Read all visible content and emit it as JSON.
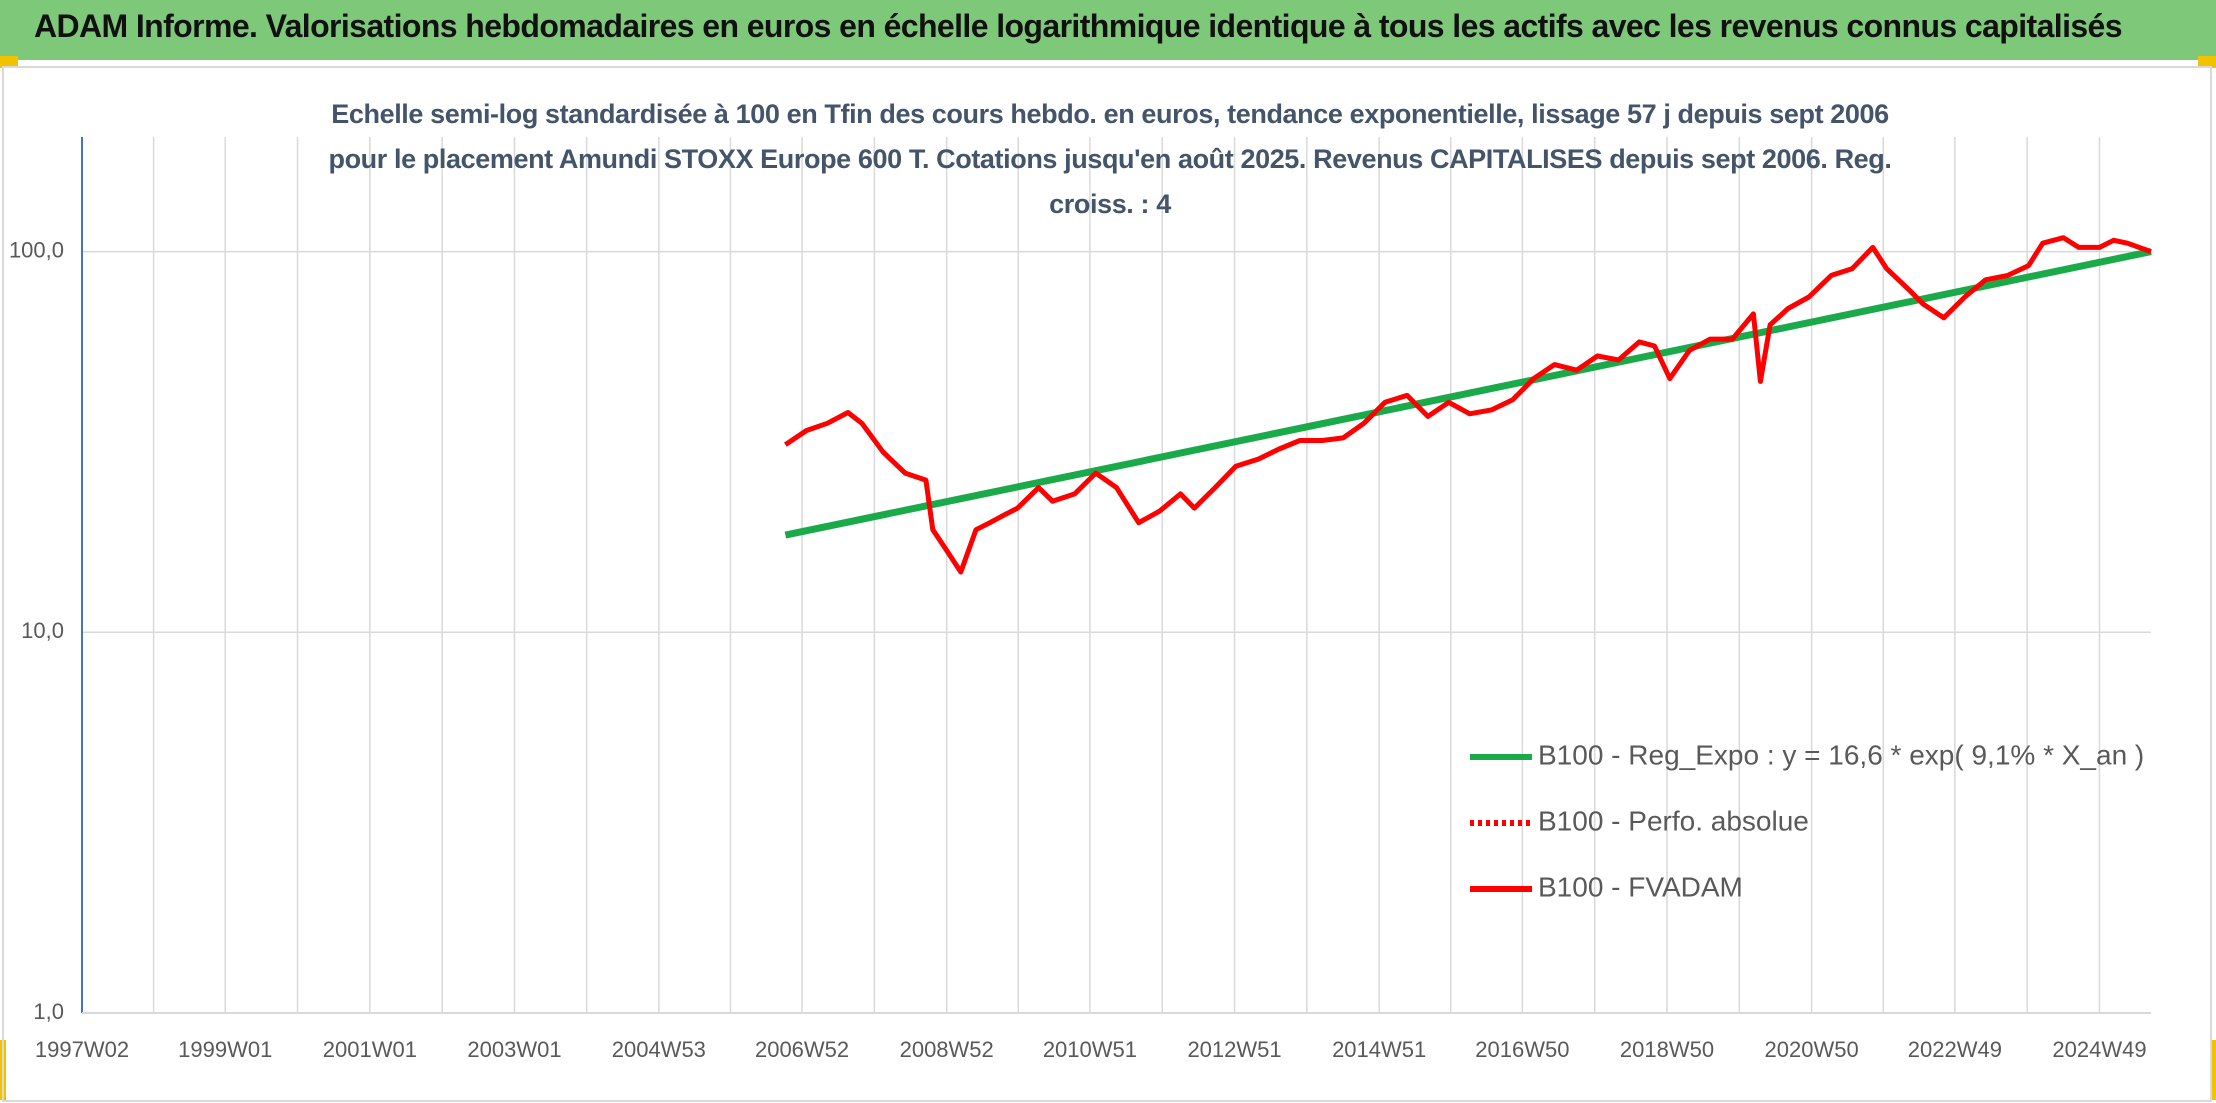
{
  "chart_data": {
    "type": "line",
    "title": "ADAM Informe. Valorisations hebdomadaires en euros en échelle logarithmique identique à tous les actifs avec les revenus connus capitalisés",
    "subtitle": "Echelle semi-log standardisée à 100 en Tfin des cours hebdo. en euros, tendance exponentielle, lissage 57 j depuis sept 2006 pour le placement Amundi STOXX Europe 600 T. Cotations jusqu'en août 2025. Revenus CAPITALISES depuis sept 2006. Reg. croiss. : 4",
    "log_scale": true,
    "grid": true,
    "legend": "right",
    "xlim": [
      "1997W02",
      "2025W34"
    ],
    "xticks": [
      "1997W02",
      "1999W01",
      "2001W01",
      "2003W01",
      "2004W53",
      "2006W52",
      "2008W52",
      "2010W51",
      "2012W51",
      "2014W51",
      "2016W50",
      "2018W50",
      "2020W50",
      "2022W49",
      "2024W49"
    ],
    "ylim": [
      1,
      200
    ],
    "yticks": [
      {
        "value": 1,
        "label": "1,0"
      },
      {
        "value": 10,
        "label": "10,0"
      },
      {
        "value": 100,
        "label": "100,0"
      }
    ],
    "series": [
      {
        "name": "B100 - Reg_Expo : y = 16,6 * exp( 9,1% *  X_an )",
        "color": "#1aaa4a",
        "style": "solid",
        "x": [
          "2006W40",
          "2025W34"
        ],
        "values": [
          18,
          100
        ]
      },
      {
        "name": "B100 - Perfo. absolue",
        "color": "#ff0000",
        "style": "dotted",
        "x": [],
        "values": []
      },
      {
        "name": "B100 - FVADAM",
        "color": "#ff0000",
        "style": "solid",
        "x": [
          "2006W40",
          "2007W03",
          "2007W18",
          "2007W33",
          "2007W43",
          "2008W06",
          "2008W22",
          "2008W37",
          "2008W42",
          "2008W52",
          "2009W10",
          "2009W21",
          "2009W31",
          "2009W41",
          "2009W51",
          "2010W14",
          "2010W24",
          "2010W40",
          "2011W03",
          "2011W18",
          "2011W34",
          "2011W49",
          "2012W12",
          "2012W22",
          "2012W37",
          "2012W52",
          "2013W16",
          "2013W31",
          "2013W46",
          "2014W10",
          "2014W25",
          "2014W40",
          "2015W03",
          "2015W19",
          "2015W34",
          "2015W49",
          "2016W12",
          "2016W28",
          "2016W43",
          "2017W06",
          "2017W21",
          "2017W37",
          "2017W52",
          "2018W15",
          "2018W30",
          "2018W41",
          "2018W52",
          "2019W14",
          "2019W29",
          "2019W45",
          "2020W08",
          "2020W13",
          "2020W20",
          "2020W33",
          "2020W48",
          "2021W12",
          "2021W27",
          "2021W42",
          "2021W52",
          "2022W16",
          "2022W26",
          "2022W41",
          "2023W04",
          "2023W19",
          "2023W35",
          "2023W50",
          "2024W08",
          "2024W23",
          "2024W34",
          "2024W49",
          "2025W07",
          "2025W17",
          "2025W34"
        ],
        "values": [
          31.1,
          33.9,
          35.4,
          37.8,
          35.4,
          29.8,
          26.2,
          25.1,
          18.6,
          16.4,
          14.4,
          18.6,
          19.4,
          20.3,
          21.2,
          24.0,
          22.1,
          23.1,
          26.2,
          24.0,
          19.4,
          20.8,
          23.1,
          21.2,
          24.0,
          27.3,
          28.5,
          30.3,
          31.9,
          31.9,
          32.4,
          35.4,
          40.2,
          41.9,
          36.9,
          40.2,
          37.5,
          38.4,
          40.8,
          46.4,
          50.5,
          48.8,
          53.2,
          51.9,
          57.9,
          56.5,
          46.4,
          55.0,
          58.9,
          58.9,
          68.6,
          45.6,
          64.2,
          70.9,
          76.0,
          86.6,
          90.2,
          102.6,
          90.2,
          79.3,
          72.9,
          67.0,
          76.0,
          84.3,
          86.6,
          91.9,
          105.2,
          108.8,
          102.6,
          102.6,
          107.1,
          105.2,
          100
        ]
      }
    ]
  }
}
